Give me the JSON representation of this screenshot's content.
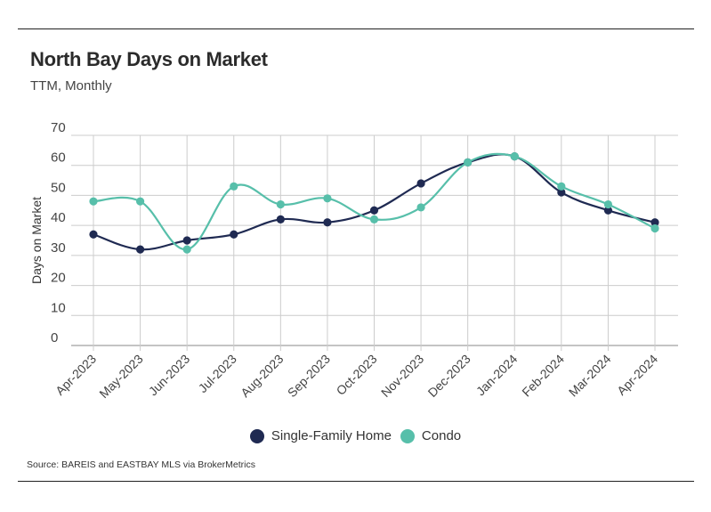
{
  "header": {
    "title": "North Bay Days on Market",
    "subtitle": "TTM, Monthly"
  },
  "footer": {
    "source": "Source:  BAREIS and EASTBAY MLS via BrokerMetrics"
  },
  "colors": {
    "single_family": "#1f2a52",
    "condo": "#57bfaa",
    "grid": "#cccccc",
    "axis": "#555555"
  },
  "chart_data": {
    "type": "line",
    "title": "North Bay Days on Market",
    "subtitle": "TTM, Monthly",
    "xlabel": "",
    "ylabel": "Days on Market",
    "ylim": [
      0,
      70
    ],
    "yticks": [
      0,
      10,
      20,
      30,
      40,
      50,
      60,
      70
    ],
    "grid": true,
    "legend_position": "bottom",
    "categories": [
      "Apr-2023",
      "May-2023",
      "Jun-2023",
      "Jul-2023",
      "Aug-2023",
      "Sep-2023",
      "Oct-2023",
      "Nov-2023",
      "Dec-2023",
      "Jan-2024",
      "Feb-2024",
      "Mar-2024",
      "Apr-2024"
    ],
    "series": [
      {
        "name": "Single-Family Home",
        "color": "#1f2a52",
        "values": [
          37,
          32,
          35,
          37,
          42,
          41,
          45,
          54,
          61,
          63,
          51,
          45,
          41
        ]
      },
      {
        "name": "Condo",
        "color": "#57bfaa",
        "values": [
          48,
          48,
          32,
          53,
          47,
          49,
          42,
          46,
          61,
          63,
          53,
          47,
          39
        ]
      }
    ]
  }
}
